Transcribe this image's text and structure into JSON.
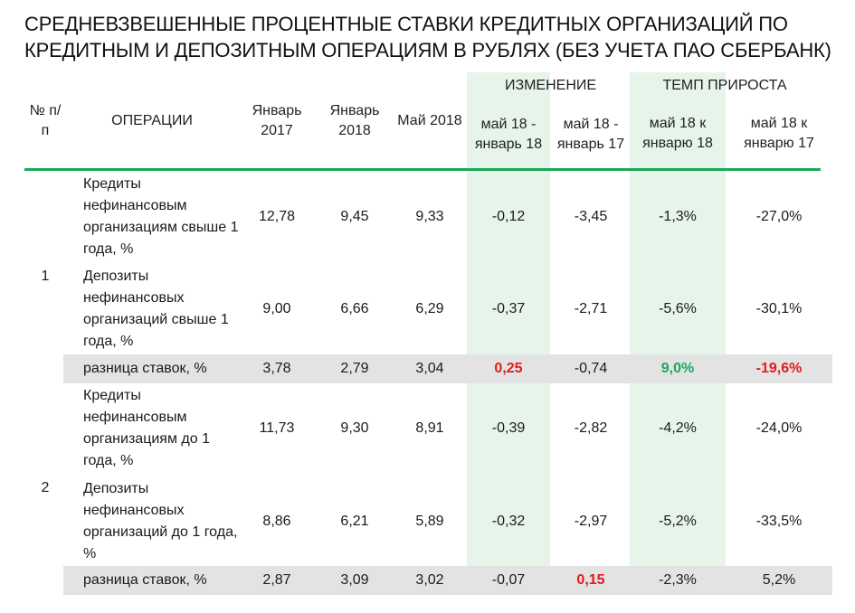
{
  "title": {
    "line1": "СРЕДНЕВЗВЕШЕННЫЕ ПРОЦЕНТНЫЕ СТАВКИ КРЕДИТНЫХ ОРГАНИЗАЦИЙ ПО",
    "line2": "КРЕДИТНЫМ И ДЕПОЗИТНЫМ ОПЕРАЦИЯМ В РУБЛЯХ (БЕЗ УЧЕТА ПАО СБЕРБАНК)"
  },
  "colors": {
    "accent_green": "#1aa85b",
    "highlight_column": "#e6f4ea",
    "summary_row": "#e3e3e3",
    "negative_highlight": "#e21b1b"
  },
  "header": {
    "num": "№ п/п",
    "operations": "ОПЕРАЦИИ",
    "jan2017": "Январь 2017",
    "jan2018": "Январь 2018",
    "may2018": "Май 2018",
    "change_group": "ИЗМЕНЕНИЕ",
    "growth_group": "ТЕМП ПРИРОСТА",
    "chg_vs_jan18": "май 18 - январь 18",
    "chg_vs_jan17": "май 18 - январь 17",
    "gr_vs_jan18": "май 18 к январю 18",
    "gr_vs_jan17": "май 18 к январю 17"
  },
  "groups": [
    {
      "number": "1",
      "rows": [
        {
          "label": "Кредиты нефинансовым организациям свыше 1 года, %",
          "jan2017": "12,78",
          "jan2018": "9,45",
          "may2018": "9,33",
          "chg_jan18": "-0,12",
          "chg_jan17": "-3,45",
          "gr_jan18": "-1,3%",
          "gr_jan17": "-27,0%"
        },
        {
          "label": "Депозиты нефинансовых организаций свыше 1 года, %",
          "jan2017": "9,00",
          "jan2018": "6,66",
          "may2018": "6,29",
          "chg_jan18": "-0,37",
          "chg_jan17": "-2,71",
          "gr_jan18": "-5,6%",
          "gr_jan17": "-30,1%"
        }
      ],
      "spread": {
        "label": "разница ставок, %",
        "jan2017": "3,78",
        "jan2018": "2,79",
        "may2018": "3,04",
        "chg_jan18": "0,25",
        "chg_jan17": "-0,74",
        "gr_jan18": "9,0%",
        "gr_jan17": "-19,6%"
      }
    },
    {
      "number": "2",
      "rows": [
        {
          "label": "Кредиты нефинансовым организациям до 1 года, %",
          "jan2017": "11,73",
          "jan2018": "9,30",
          "may2018": "8,91",
          "chg_jan18": "-0,39",
          "chg_jan17": "-2,82",
          "gr_jan18": "-4,2%",
          "gr_jan17": "-24,0%"
        },
        {
          "label": "Депозиты нефинансовых организаций до 1 года, %",
          "jan2017": "8,86",
          "jan2018": "6,21",
          "may2018": "5,89",
          "chg_jan18": "-0,32",
          "chg_jan17": "-2,97",
          "gr_jan18": "-5,2%",
          "gr_jan17": "-33,5%"
        }
      ],
      "spread": {
        "label": "разница ставок, %",
        "jan2017": "2,87",
        "jan2018": "3,09",
        "may2018": "3,02",
        "chg_jan18": "-0,07",
        "chg_jan17": "0,15",
        "gr_jan18": "-2,3%",
        "gr_jan17": "5,2%"
      }
    }
  ]
}
